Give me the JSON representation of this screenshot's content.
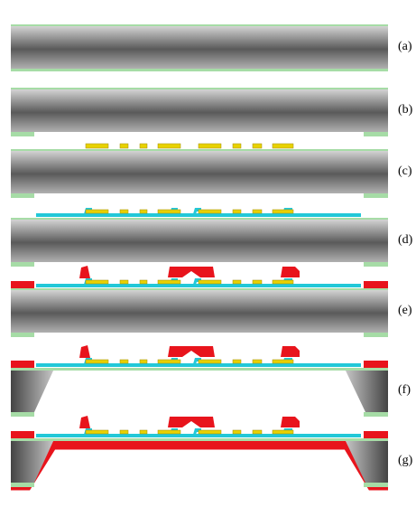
{
  "steps": [
    {
      "label": "(a)"
    },
    {
      "label": "(b)"
    },
    {
      "label": "(c)"
    },
    {
      "label": "(d)"
    },
    {
      "label": "(e)"
    },
    {
      "label": "(f)"
    },
    {
      "label": "(g)"
    }
  ]
}
